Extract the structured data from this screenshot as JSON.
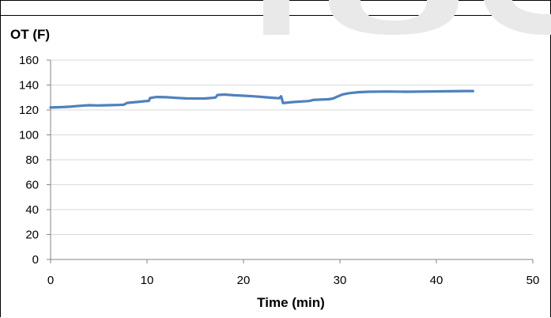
{
  "chart_data": {
    "type": "line",
    "title": "",
    "xlabel": "Time (min)",
    "ylabel": "OT (F)",
    "xlim": [
      0,
      50
    ],
    "ylim": [
      0,
      160
    ],
    "x_ticks": [
      0,
      10,
      20,
      30,
      40,
      50
    ],
    "y_ticks": [
      0,
      20,
      40,
      60,
      80,
      100,
      120,
      140,
      160
    ],
    "grid": "horizontal",
    "legend": "none",
    "series": [
      {
        "color": "#4f81bd",
        "x": [
          0,
          1,
          2,
          3,
          4,
          5,
          6,
          7,
          7.6,
          7.9,
          8.3,
          9,
          9.7,
          10.2,
          10.3,
          10.6,
          11,
          12,
          13,
          14,
          15,
          16,
          16.5,
          17.1,
          17.3,
          18,
          19,
          20,
          21,
          22,
          23,
          23.7,
          23.9,
          24.1,
          24.4,
          25,
          26,
          26.8,
          27.2,
          28,
          28.8,
          29.3,
          29.8,
          30.3,
          31,
          32,
          33,
          35,
          37,
          39,
          41,
          43,
          43.8
        ],
        "y": [
          122,
          122.2,
          122.6,
          123.3,
          123.8,
          123.6,
          123.8,
          124,
          124.2,
          125.6,
          126,
          126.4,
          127,
          127.3,
          129.5,
          130,
          130.4,
          130.2,
          129.7,
          129.3,
          129.2,
          129.2,
          129.5,
          130,
          132,
          132.4,
          131.8,
          131.4,
          131,
          130.4,
          129.8,
          129.4,
          131,
          125.5,
          125.8,
          126.3,
          126.8,
          127.2,
          128,
          128.3,
          128.6,
          129.2,
          131,
          132.5,
          133.5,
          134.3,
          134.6,
          134.8,
          134.6,
          134.8,
          135,
          135.2,
          135.2
        ]
      }
    ]
  },
  "watermark": {
    "color": "#e9e9e9"
  }
}
